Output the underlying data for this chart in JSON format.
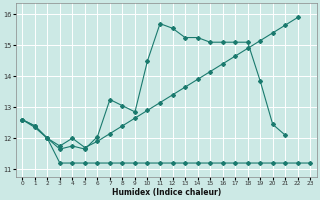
{
  "xlabel": "Humidex (Indice chaleur)",
  "bg_color": "#cce9e5",
  "grid_color": "#ffffff",
  "line_color": "#1a7a6e",
  "xlim": [
    -0.5,
    23.5
  ],
  "ylim": [
    10.75,
    16.35
  ],
  "yticks": [
    11,
    12,
    13,
    14,
    15,
    16
  ],
  "xticks": [
    0,
    1,
    2,
    3,
    4,
    5,
    6,
    7,
    8,
    9,
    10,
    11,
    12,
    13,
    14,
    15,
    16,
    17,
    18,
    19,
    20,
    21,
    22,
    23
  ],
  "xtick_labels": [
    "0",
    "1",
    "2",
    "3",
    "4",
    "5",
    "6",
    "7",
    "8",
    "9",
    "10",
    "11",
    "12",
    "13",
    "14",
    "15",
    "16",
    "17",
    "18",
    "19",
    "20",
    "21",
    "22",
    "23"
  ],
  "series1_x": [
    0,
    1,
    2,
    3,
    4,
    5,
    6,
    7,
    8,
    9,
    10,
    11,
    12,
    13,
    14,
    15,
    16,
    17,
    18,
    19,
    20,
    21
  ],
  "series1_y": [
    12.6,
    12.4,
    12.0,
    11.65,
    11.75,
    11.65,
    12.05,
    13.25,
    13.05,
    12.85,
    14.5,
    15.7,
    15.55,
    15.25,
    15.25,
    15.1,
    15.1,
    15.1,
    15.1,
    13.85,
    12.45,
    12.1
  ],
  "series2_x": [
    0,
    1,
    2,
    3,
    4,
    5,
    6,
    7,
    8,
    9,
    10,
    11,
    12,
    13,
    14,
    15,
    16,
    17,
    18,
    19,
    20,
    21,
    22,
    23
  ],
  "series2_y": [
    12.6,
    12.4,
    12.0,
    11.2,
    11.2,
    11.2,
    11.2,
    11.2,
    11.2,
    11.2,
    11.2,
    11.2,
    11.2,
    11.2,
    11.2,
    11.2,
    11.2,
    11.2,
    11.2,
    11.2,
    11.2,
    11.2,
    11.2,
    11.2
  ],
  "series3_x": [
    0,
    1,
    2,
    3,
    4,
    5,
    6,
    7,
    8,
    9,
    10,
    11,
    12,
    13,
    14,
    15,
    16,
    17,
    18,
    19,
    20,
    21,
    22
  ],
  "series3_y": [
    12.6,
    12.35,
    12.0,
    11.75,
    12.0,
    11.7,
    11.9,
    12.15,
    12.4,
    12.65,
    12.9,
    13.15,
    13.4,
    13.65,
    13.9,
    14.15,
    14.4,
    14.65,
    14.9,
    15.15,
    15.4,
    15.65,
    15.9
  ]
}
